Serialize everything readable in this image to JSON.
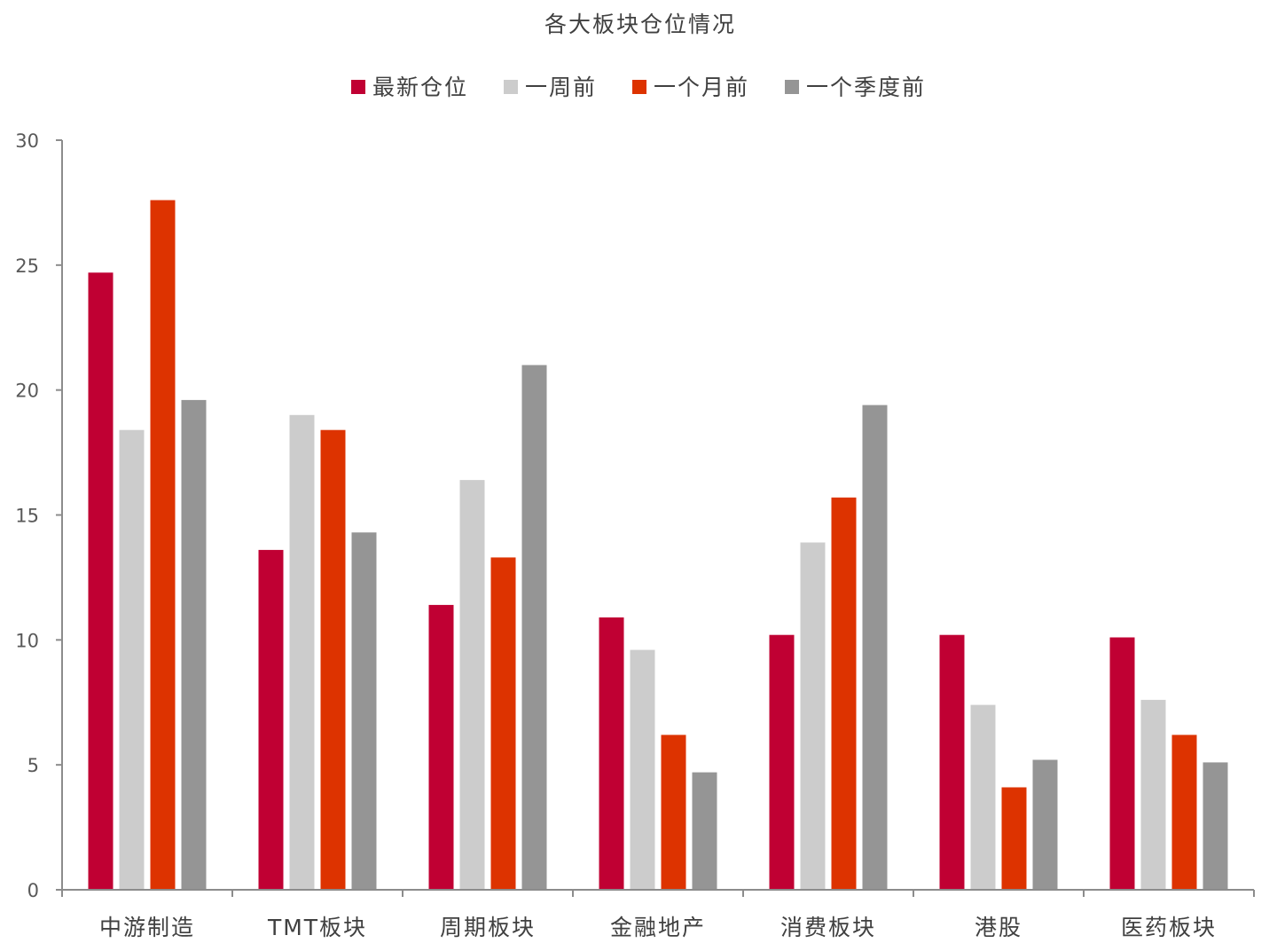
{
  "chart_data": {
    "type": "bar",
    "title": "各大板块仓位情况",
    "xlabel": "",
    "ylabel": "",
    "ylim": [
      0,
      30
    ],
    "yticks": [
      0,
      5,
      10,
      15,
      20,
      25,
      30
    ],
    "grid": false,
    "legend_position": "top",
    "categories": [
      "中游制造",
      "TMT板块",
      "周期板块",
      "金融地产",
      "消费板块",
      "港股",
      "医药板块"
    ],
    "series": [
      {
        "name": "最新仓位",
        "color": "#C00033",
        "values": [
          24.7,
          13.6,
          11.4,
          10.9,
          10.2,
          10.2,
          10.1
        ]
      },
      {
        "name": "一周前",
        "color": "#CCCCCC",
        "values": [
          18.4,
          19.0,
          16.4,
          9.6,
          13.9,
          7.4,
          7.6
        ]
      },
      {
        "name": "一个月前",
        "color": "#DD3300",
        "values": [
          27.6,
          18.4,
          13.3,
          6.2,
          15.7,
          4.1,
          6.2
        ]
      },
      {
        "name": "一个季度前",
        "color": "#959595",
        "values": [
          19.6,
          14.3,
          21.0,
          4.7,
          19.4,
          5.2,
          5.1
        ]
      }
    ]
  }
}
